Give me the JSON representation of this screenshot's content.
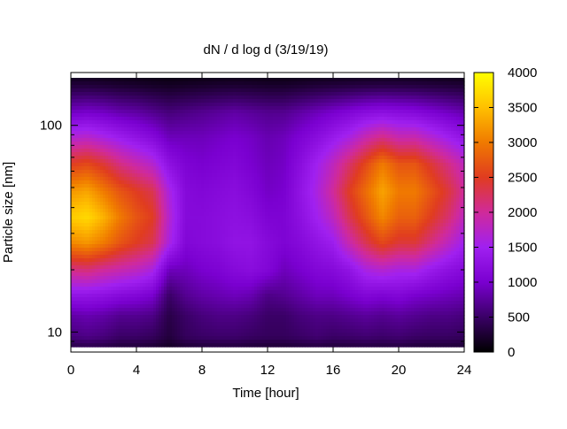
{
  "chart_data": {
    "type": "heatmap",
    "title": "dN / d log d (3/19/19)",
    "xlabel": "Time [hour]",
    "ylabel": "Particle size [nm]",
    "x_range": [
      0,
      24
    ],
    "y_range_nm": [
      8,
      180
    ],
    "y_scale": "log",
    "x_ticks": [
      0,
      4,
      8,
      12,
      16,
      20,
      24
    ],
    "x_tick_labels": [
      "0",
      "4",
      "8",
      "12",
      "16",
      "20",
      "24"
    ],
    "y_ticks": [
      10,
      100
    ],
    "y_tick_labels": [
      "10",
      "100"
    ],
    "colorbar_range": [
      0,
      4000
    ],
    "colorbar_ticks": [
      0,
      500,
      1000,
      1500,
      2000,
      2500,
      3000,
      3500,
      4000
    ],
    "colorbar_tick_labels": [
      "0",
      "500",
      "1000",
      "1500",
      "2000",
      "2500",
      "3000",
      "3500",
      "4000"
    ],
    "colormap": [
      "#000000",
      "#3a0066",
      "#7a00d0",
      "#a020f0",
      "#d02a9a",
      "#e03c20",
      "#f07a00",
      "#ffc000",
      "#ffff00"
    ],
    "peak_centers_nm": [
      9.5,
      12,
      15,
      20,
      27,
      36,
      48,
      65,
      87,
      115,
      155
    ],
    "time_hours": [
      0,
      1,
      2,
      3,
      4,
      5,
      6,
      7,
      8,
      9,
      10,
      11,
      12,
      13,
      14,
      15,
      16,
      17,
      18,
      19,
      20,
      21,
      22,
      23,
      24
    ],
    "concentration_rows": [
      [
        600,
        650,
        600,
        500,
        500,
        450,
        300,
        450,
        500,
        520,
        520,
        480,
        450,
        450,
        500,
        550,
        500,
        520,
        550,
        520,
        550,
        500,
        480,
        480,
        450
      ],
      [
        800,
        850,
        800,
        700,
        700,
        650,
        350,
        500,
        600,
        650,
        650,
        600,
        500,
        500,
        600,
        650,
        650,
        700,
        750,
        700,
        750,
        700,
        650,
        650,
        600
      ],
      [
        1300,
        1300,
        1250,
        1150,
        1100,
        1000,
        500,
        700,
        800,
        850,
        900,
        850,
        650,
        700,
        800,
        900,
        900,
        1000,
        1100,
        1050,
        1100,
        1000,
        950,
        900,
        850
      ],
      [
        2100,
        2150,
        2000,
        1900,
        1800,
        1600,
        900,
        900,
        1000,
        1050,
        1150,
        1200,
        1100,
        900,
        1000,
        1100,
        1150,
        1300,
        1600,
        1700,
        1600,
        1600,
        1400,
        1250,
        1150
      ],
      [
        3100,
        3200,
        3000,
        2700,
        2500,
        2300,
        1600,
        1100,
        1150,
        1200,
        1300,
        1300,
        1150,
        1050,
        1150,
        1300,
        1450,
        1900,
        2300,
        2600,
        2400,
        2400,
        2100,
        1800,
        1500
      ],
      [
        3600,
        3700,
        3400,
        3000,
        2700,
        2500,
        1700,
        1150,
        1150,
        1200,
        1250,
        1200,
        1050,
        1050,
        1250,
        1500,
        1800,
        2300,
        2700,
        3100,
        2800,
        2800,
        2500,
        2200,
        1800
      ],
      [
        3200,
        3300,
        3000,
        2700,
        2500,
        2300,
        1600,
        1150,
        1100,
        1150,
        1200,
        1100,
        950,
        1000,
        1300,
        1600,
        2000,
        2500,
        2900,
        3300,
        3000,
        3000,
        2700,
        2400,
        2000
      ],
      [
        2500,
        2600,
        2400,
        2100,
        1900,
        1700,
        1250,
        1050,
        1000,
        1050,
        1100,
        1000,
        900,
        950,
        1200,
        1500,
        1800,
        2200,
        2600,
        3000,
        2700,
        2700,
        2400,
        2100,
        1800
      ],
      [
        1700,
        1750,
        1600,
        1450,
        1300,
        1150,
        900,
        900,
        900,
        950,
        1000,
        950,
        850,
        900,
        1050,
        1200,
        1400,
        1600,
        1900,
        2100,
        1900,
        1900,
        1700,
        1500,
        1300
      ],
      [
        950,
        1000,
        950,
        850,
        800,
        700,
        600,
        650,
        700,
        750,
        800,
        750,
        700,
        700,
        800,
        900,
        1000,
        1100,
        1200,
        1250,
        1200,
        1150,
        1050,
        950,
        850
      ],
      [
        300,
        300,
        280,
        250,
        230,
        200,
        180,
        200,
        220,
        240,
        250,
        240,
        220,
        220,
        250,
        280,
        300,
        320,
        340,
        350,
        340,
        330,
        310,
        290,
        270
      ]
    ]
  }
}
